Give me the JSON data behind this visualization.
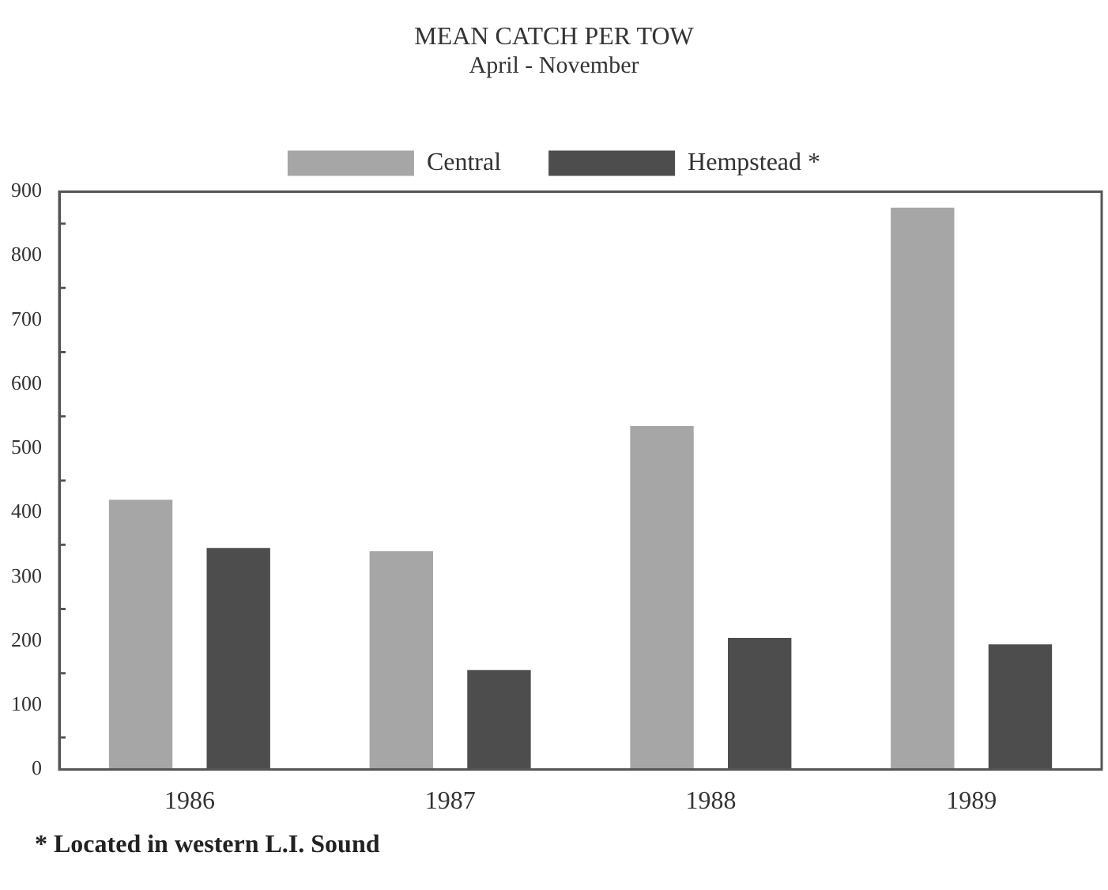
{
  "chart_data": {
    "type": "bar",
    "title": "MEAN CATCH PER TOW",
    "subtitle": "April - November",
    "categories": [
      "1986",
      "1987",
      "1988",
      "1989"
    ],
    "series": [
      {
        "name": "Central",
        "color": "#a6a6a6",
        "values": [
          420,
          340,
          535,
          875
        ]
      },
      {
        "name": "Hempstead *",
        "color": "#4d4d4d",
        "values": [
          345,
          155,
          205,
          195
        ]
      }
    ],
    "ylim": [
      0,
      900
    ],
    "yticks": [
      0,
      100,
      200,
      300,
      400,
      500,
      600,
      700,
      800,
      900
    ],
    "grid": false,
    "legend": "top",
    "annotations": [
      "* Located in western L.I. Sound"
    ]
  }
}
